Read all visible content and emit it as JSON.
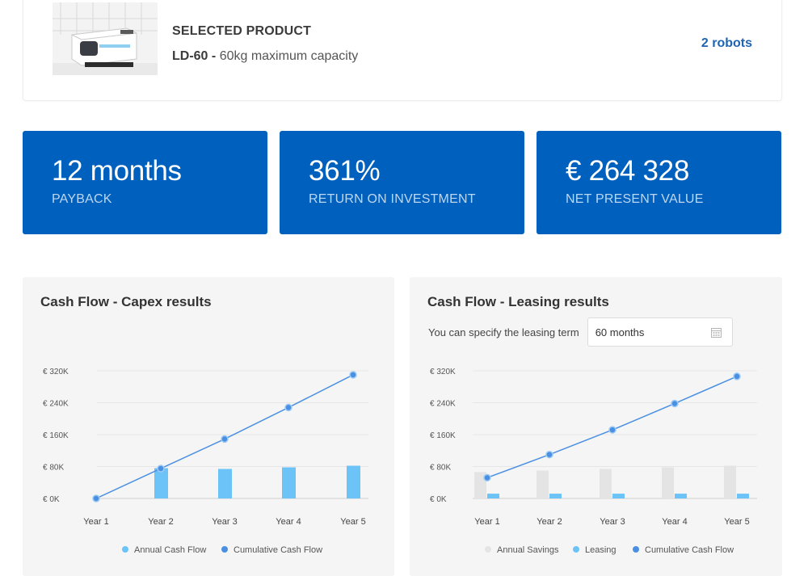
{
  "product": {
    "label": "SELECTED PRODUCT",
    "model": "LD-60 -",
    "description": "60kg maximum capacity",
    "robots": "2 robots"
  },
  "kpis": [
    {
      "value": "12 months",
      "label": "PAYBACK"
    },
    {
      "value": "361%",
      "label": "RETURN ON INVESTMENT"
    },
    {
      "value": "€ 264 328",
      "label": "NET PRESENT VALUE"
    }
  ],
  "colors": {
    "kpi_bg": "#0060bd",
    "link": "#1f64b3",
    "bar_light": "#6cc3f7",
    "line": "#4a90e2",
    "savings": "#e4e4e4"
  },
  "capex": {
    "title": "Cash Flow - Capex results"
  },
  "leasing": {
    "title": "Cash Flow - Leasing results",
    "term_label": "You can specify the leasing term",
    "term_value": "60 months"
  },
  "chart_data": [
    {
      "type": "bar",
      "title": "Cash Flow - Capex results",
      "categories": [
        "Year 1",
        "Year 2",
        "Year 3",
        "Year 4",
        "Year 5"
      ],
      "y_ticks": [
        "€ 0K",
        "€ 80K",
        "€ 160K",
        "€ 240K",
        "€ 320K"
      ],
      "ylim": [
        0,
        320000
      ],
      "series": [
        {
          "name": "Annual Cash Flow",
          "kind": "bar",
          "values": [
            0,
            76000,
            74000,
            78000,
            82000
          ]
        },
        {
          "name": "Cumulative Cash Flow",
          "kind": "line",
          "values": [
            0,
            75000,
            149000,
            228000,
            310000
          ]
        }
      ],
      "legend": "bottom"
    },
    {
      "type": "bar",
      "title": "Cash Flow - Leasing results",
      "categories": [
        "Year 1",
        "Year 2",
        "Year 3",
        "Year 4",
        "Year 5"
      ],
      "y_ticks": [
        "€ 0K",
        "€ 80K",
        "€ 160K",
        "€ 240K",
        "€ 320K"
      ],
      "ylim": [
        0,
        320000
      ],
      "series": [
        {
          "name": "Annual Savings",
          "kind": "bar",
          "values": [
            66000,
            70000,
            74000,
            78000,
            82000
          ]
        },
        {
          "name": "Leasing",
          "kind": "bar",
          "values": [
            12000,
            12000,
            12000,
            12000,
            12000
          ]
        },
        {
          "name": "Cumulative Cash Flow",
          "kind": "line",
          "values": [
            52000,
            110000,
            172000,
            238000,
            306000
          ]
        }
      ],
      "legend": "bottom"
    }
  ]
}
